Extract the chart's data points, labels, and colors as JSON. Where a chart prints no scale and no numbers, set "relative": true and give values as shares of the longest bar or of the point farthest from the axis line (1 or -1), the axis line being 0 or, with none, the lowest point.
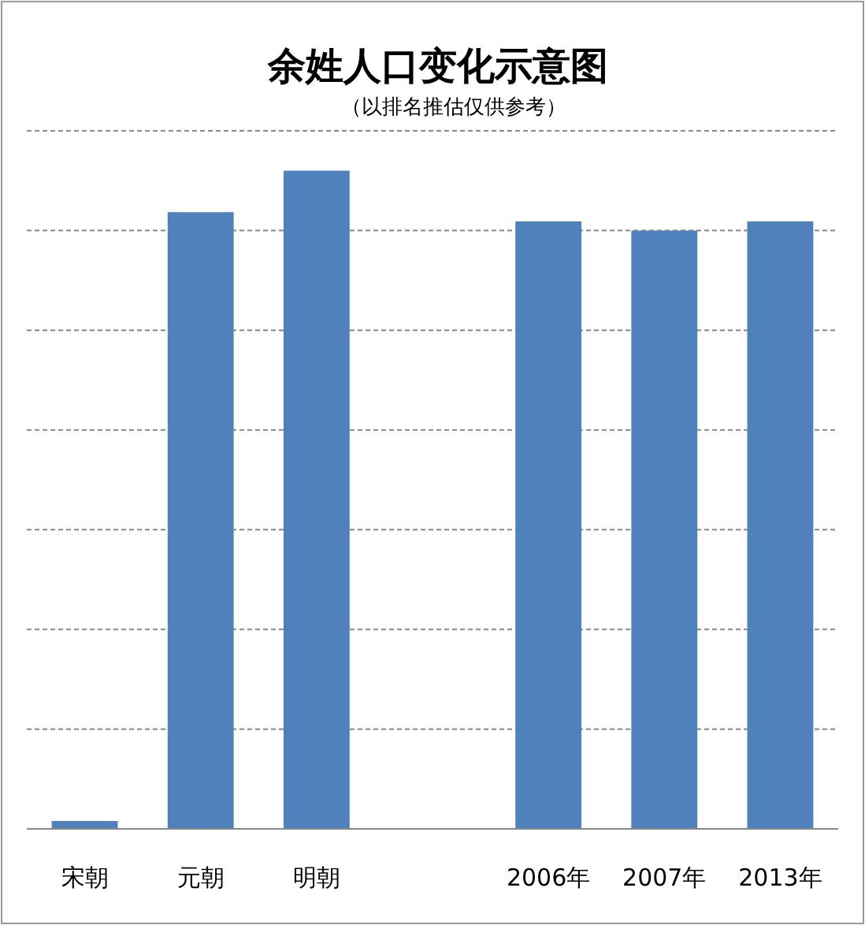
{
  "chart_data": {
    "type": "bar",
    "title": "余姓人口变化示意图",
    "subtitle": "（以排名推估仅供参考）",
    "categories": [
      "宋朝",
      "元朝",
      "明朝",
      null,
      "2006年",
      "2007年",
      "2013年"
    ],
    "values": [
      0.012,
      0.937,
      1,
      null,
      0.923,
      0.909,
      0.923
    ],
    "color": "#4f81bd",
    "relative": true,
    "grid": "y"
  }
}
